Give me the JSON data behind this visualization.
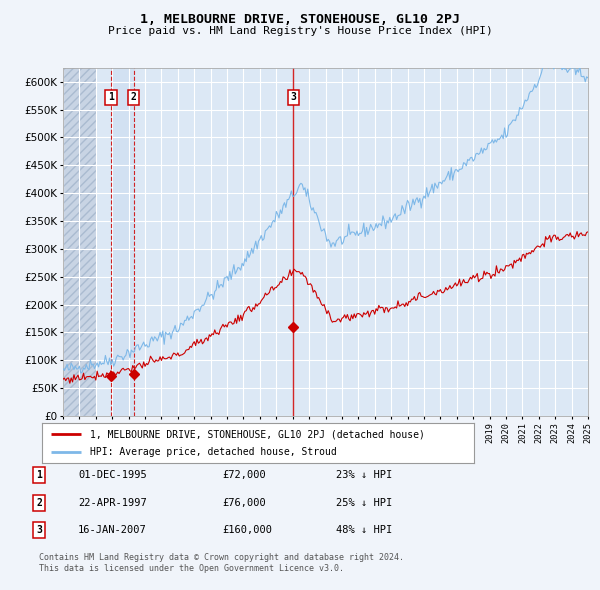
{
  "title": "1, MELBOURNE DRIVE, STONEHOUSE, GL10 2PJ",
  "subtitle": "Price paid vs. HM Land Registry's House Price Index (HPI)",
  "ylim": [
    0,
    625000
  ],
  "yticks": [
    0,
    50000,
    100000,
    150000,
    200000,
    250000,
    300000,
    350000,
    400000,
    450000,
    500000,
    550000,
    600000
  ],
  "xlim": [
    1993,
    2025
  ],
  "hpi_color": "#7eb8e8",
  "price_color": "#cc0000",
  "legend_label_price": "1, MELBOURNE DRIVE, STONEHOUSE, GL10 2PJ (detached house)",
  "legend_label_hpi": "HPI: Average price, detached house, Stroud",
  "sale_years": [
    1995.92,
    1997.31,
    2007.04
  ],
  "sale_prices": [
    72000,
    76000,
    160000
  ],
  "sale_labels": [
    "1",
    "2",
    "3"
  ],
  "table_rows": [
    {
      "num": "1",
      "date": "01-DEC-1995",
      "price": "£72,000",
      "hpi": "23% ↓ HPI"
    },
    {
      "num": "2",
      "date": "22-APR-1997",
      "price": "£76,000",
      "hpi": "25% ↓ HPI"
    },
    {
      "num": "3",
      "date": "16-JAN-2007",
      "price": "£160,000",
      "hpi": "48% ↓ HPI"
    }
  ],
  "footer1": "Contains HM Land Registry data © Crown copyright and database right 2024.",
  "footer2": "This data is licensed under the Open Government Licence v3.0.",
  "background_color": "#f0f4fa",
  "plot_bg_color": "#dce8f5",
  "hatch_bg_color": "#c8d4e4",
  "grid_color": "#ffffff",
  "hatch_end_year": 1995.0,
  "blue_band_x1": 1995.92,
  "blue_band_x2": 1997.31
}
